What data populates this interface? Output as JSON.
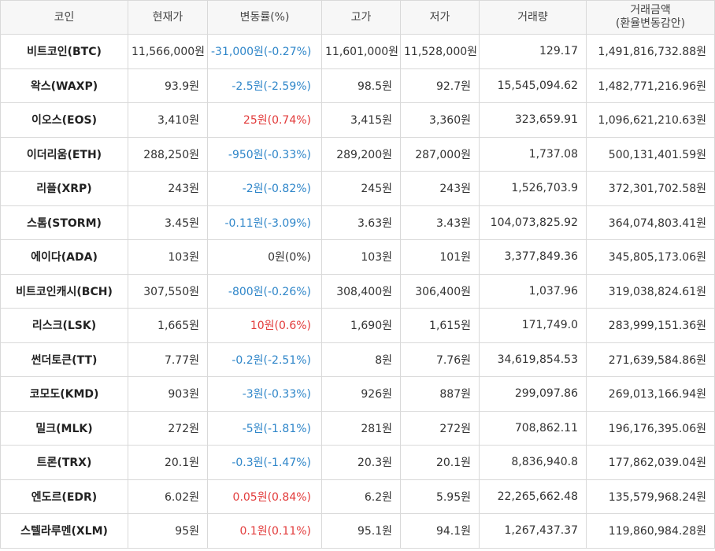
{
  "headers": {
    "coin": "코인",
    "price": "현재가",
    "change": "변동률(%)",
    "high": "고가",
    "low": "저가",
    "volume": "거래량",
    "amount_line1": "거래금액",
    "amount_line2": "(환율변동감안)"
  },
  "colors": {
    "down": "#2f86c9",
    "up": "#e23b3b",
    "flat": "#333333"
  },
  "rows": [
    {
      "name": "비트코인(BTC)",
      "price": "11,566,000원",
      "change": "-31,000원(-0.27%)",
      "dir": "down",
      "high": "11,601,000원",
      "low": "11,528,000원",
      "volume": "129.17",
      "amount": "1,491,816,732.88원"
    },
    {
      "name": "왁스(WAXP)",
      "price": "93.9원",
      "change": "-2.5원(-2.59%)",
      "dir": "down",
      "high": "98.5원",
      "low": "92.7원",
      "volume": "15,545,094.62",
      "amount": "1,482,771,216.96원"
    },
    {
      "name": "이오스(EOS)",
      "price": "3,410원",
      "change": "25원(0.74%)",
      "dir": "up",
      "high": "3,415원",
      "low": "3,360원",
      "volume": "323,659.91",
      "amount": "1,096,621,210.63원"
    },
    {
      "name": "이더리움(ETH)",
      "price": "288,250원",
      "change": "-950원(-0.33%)",
      "dir": "down",
      "high": "289,200원",
      "low": "287,000원",
      "volume": "1,737.08",
      "amount": "500,131,401.59원"
    },
    {
      "name": "리플(XRP)",
      "price": "243원",
      "change": "-2원(-0.82%)",
      "dir": "down",
      "high": "245원",
      "low": "243원",
      "volume": "1,526,703.9",
      "amount": "372,301,702.58원"
    },
    {
      "name": "스톰(STORM)",
      "price": "3.45원",
      "change": "-0.11원(-3.09%)",
      "dir": "down",
      "high": "3.63원",
      "low": "3.43원",
      "volume": "104,073,825.92",
      "amount": "364,074,803.41원"
    },
    {
      "name": "에이다(ADA)",
      "price": "103원",
      "change": "0원(0%)",
      "dir": "flat",
      "high": "103원",
      "low": "101원",
      "volume": "3,377,849.36",
      "amount": "345,805,173.06원"
    },
    {
      "name": "비트코인캐시(BCH)",
      "price": "307,550원",
      "change": "-800원(-0.26%)",
      "dir": "down",
      "high": "308,400원",
      "low": "306,400원",
      "volume": "1,037.96",
      "amount": "319,038,824.61원"
    },
    {
      "name": "리스크(LSK)",
      "price": "1,665원",
      "change": "10원(0.6%)",
      "dir": "up",
      "high": "1,690원",
      "low": "1,615원",
      "volume": "171,749.0",
      "amount": "283,999,151.36원"
    },
    {
      "name": "썬더토큰(TT)",
      "price": "7.77원",
      "change": "-0.2원(-2.51%)",
      "dir": "down",
      "high": "8원",
      "low": "7.76원",
      "volume": "34,619,854.53",
      "amount": "271,639,584.86원"
    },
    {
      "name": "코모도(KMD)",
      "price": "903원",
      "change": "-3원(-0.33%)",
      "dir": "down",
      "high": "926원",
      "low": "887원",
      "volume": "299,097.86",
      "amount": "269,013,166.94원"
    },
    {
      "name": "밀크(MLK)",
      "price": "272원",
      "change": "-5원(-1.81%)",
      "dir": "down",
      "high": "281원",
      "low": "272원",
      "volume": "708,862.11",
      "amount": "196,176,395.06원"
    },
    {
      "name": "트론(TRX)",
      "price": "20.1원",
      "change": "-0.3원(-1.47%)",
      "dir": "down",
      "high": "20.3원",
      "low": "20.1원",
      "volume": "8,836,940.8",
      "amount": "177,862,039.04원"
    },
    {
      "name": "엔도르(EDR)",
      "price": "6.02원",
      "change": "0.05원(0.84%)",
      "dir": "up",
      "high": "6.2원",
      "low": "5.95원",
      "volume": "22,265,662.48",
      "amount": "135,579,968.24원"
    },
    {
      "name": "스텔라루멘(XLM)",
      "price": "95원",
      "change": "0.1원(0.11%)",
      "dir": "up",
      "high": "95.1원",
      "low": "94.1원",
      "volume": "1,267,437.37",
      "amount": "119,860,984.28원"
    }
  ]
}
